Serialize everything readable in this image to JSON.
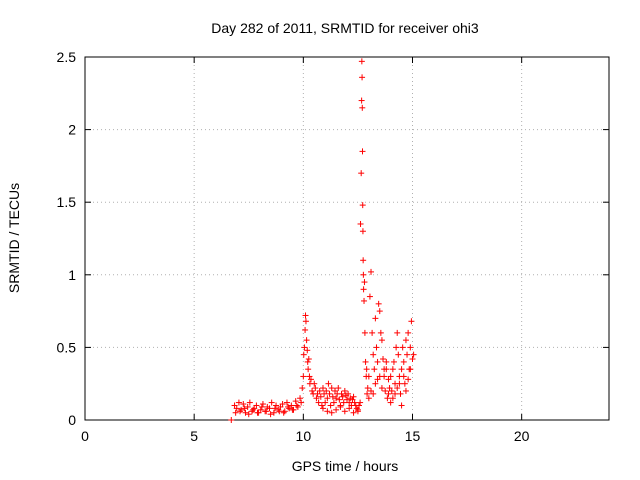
{
  "chart_data": {
    "type": "scatter",
    "title": "Day 282 of 2011, SRMTID for receiver ohi3",
    "xlabel": "GPS time / hours",
    "ylabel": "SRMTID / TECUs",
    "xlim": [
      0,
      24
    ],
    "ylim": [
      0,
      2.5
    ],
    "xticks": [
      0,
      5,
      10,
      15,
      20
    ],
    "xtick_labels": [
      "0",
      "5",
      "10",
      "15",
      "20"
    ],
    "yticks": [
      0,
      0.5,
      1,
      1.5,
      2,
      2.5
    ],
    "ytick_labels": [
      "0",
      "0.5",
      "1",
      "1.5",
      "2",
      "2.5"
    ],
    "grid": true,
    "marker": "+",
    "marker_color": "#ff0000",
    "series": [
      {
        "name": "ohi3",
        "x": [
          6.7,
          6.85,
          6.95,
          7.05,
          7.15,
          7.25,
          7.35,
          7.45,
          7.55,
          7.65,
          7.75,
          7.85,
          7.95,
          8.05,
          8.15,
          8.25,
          8.35,
          8.45,
          8.55,
          8.65,
          8.75,
          8.85,
          8.95,
          9.05,
          9.15,
          9.25,
          9.35,
          9.45,
          9.55,
          9.65,
          9.75,
          9.85,
          6.9,
          7.1,
          7.3,
          7.5,
          7.7,
          7.9,
          8.1,
          8.3,
          8.5,
          8.7,
          8.9,
          9.1,
          9.3,
          9.5,
          9.7,
          9.9,
          9.95,
          10.0,
          10.02,
          10.05,
          10.08,
          10.1,
          10.12,
          10.15,
          10.18,
          10.2,
          10.22,
          10.25,
          10.28,
          10.3,
          10.35,
          10.4,
          10.45,
          10.5,
          10.55,
          10.6,
          10.65,
          10.7,
          10.75,
          10.8,
          10.85,
          10.9,
          10.95,
          11.0,
          11.05,
          11.1,
          11.15,
          11.2,
          11.25,
          11.3,
          11.35,
          11.4,
          11.45,
          11.5,
          11.55,
          11.6,
          11.65,
          11.7,
          11.75,
          11.8,
          11.85,
          11.9,
          11.95,
          12.0,
          12.05,
          12.1,
          12.15,
          12.2,
          12.25,
          12.3,
          12.35,
          12.4,
          12.45,
          12.5,
          12.55,
          12.6,
          10.9,
          11.1,
          11.3,
          11.5,
          11.7,
          11.9,
          12.1,
          12.3,
          12.5,
          12.62,
          12.65,
          12.67,
          12.68,
          12.69,
          12.7,
          12.71,
          12.72,
          12.73,
          12.74,
          12.75,
          12.76,
          12.78,
          12.8,
          12.82,
          12.85,
          12.88,
          12.9,
          12.92,
          12.95,
          13.0,
          13.05,
          13.1,
          13.15,
          13.2,
          13.25,
          13.3,
          13.35,
          13.4,
          13.45,
          13.5,
          13.55,
          13.6,
          13.65,
          13.7,
          13.75,
          13.8,
          13.85,
          13.9,
          13.95,
          13.0,
          13.1,
          13.2,
          13.3,
          13.4,
          13.5,
          13.6,
          13.7,
          13.8,
          13.9,
          14.0,
          14.05,
          14.1,
          14.15,
          14.2,
          14.25,
          14.3,
          14.35,
          14.4,
          14.45,
          14.5,
          14.55,
          14.6,
          14.65,
          14.7,
          14.75,
          14.8,
          14.85,
          14.9,
          14.95,
          15.0,
          15.05,
          14.0,
          14.1,
          14.2,
          14.3,
          14.4,
          14.5,
          14.6,
          14.7,
          14.8,
          14.9
        ],
        "y": [
          0.0,
          0.1,
          0.08,
          0.12,
          0.07,
          0.11,
          0.05,
          0.09,
          0.12,
          0.06,
          0.08,
          0.1,
          0.05,
          0.07,
          0.11,
          0.06,
          0.09,
          0.08,
          0.12,
          0.05,
          0.1,
          0.07,
          0.09,
          0.11,
          0.06,
          0.12,
          0.08,
          0.1,
          0.07,
          0.13,
          0.09,
          0.15,
          0.05,
          0.06,
          0.08,
          0.04,
          0.07,
          0.05,
          0.09,
          0.06,
          0.04,
          0.08,
          0.06,
          0.05,
          0.09,
          0.07,
          0.1,
          0.12,
          0.22,
          0.3,
          0.45,
          0.5,
          0.62,
          0.72,
          0.68,
          0.55,
          0.48,
          0.4,
          0.35,
          0.42,
          0.3,
          0.25,
          0.28,
          0.2,
          0.18,
          0.25,
          0.22,
          0.15,
          0.18,
          0.12,
          0.2,
          0.16,
          0.1,
          0.22,
          0.18,
          0.12,
          0.2,
          0.15,
          0.25,
          0.18,
          0.1,
          0.22,
          0.16,
          0.12,
          0.2,
          0.15,
          0.18,
          0.22,
          0.14,
          0.1,
          0.18,
          0.16,
          0.12,
          0.2,
          0.17,
          0.14,
          0.18,
          0.12,
          0.15,
          0.1,
          0.14,
          0.16,
          0.12,
          0.1,
          0.08,
          0.06,
          0.1,
          0.12,
          0.08,
          0.06,
          0.05,
          0.07,
          0.09,
          0.06,
          0.08,
          0.05,
          0.07,
          1.35,
          1.7,
          2.2,
          2.47,
          2.36,
          2.15,
          1.85,
          1.48,
          1.3,
          1.1,
          1.0,
          0.9,
          0.82,
          0.95,
          0.6,
          0.4,
          0.3,
          0.35,
          0.18,
          0.22,
          0.3,
          0.85,
          1.02,
          0.6,
          0.45,
          0.35,
          0.7,
          0.5,
          0.4,
          0.8,
          0.75,
          0.6,
          0.55,
          0.42,
          0.3,
          0.2,
          0.35,
          0.15,
          0.28,
          0.22,
          0.15,
          0.2,
          0.18,
          0.25,
          0.28,
          0.3,
          0.22,
          0.35,
          0.4,
          0.18,
          0.3,
          0.2,
          0.35,
          0.4,
          0.25,
          0.5,
          0.6,
          0.45,
          0.3,
          0.18,
          0.35,
          0.5,
          0.4,
          0.25,
          0.55,
          0.45,
          0.6,
          0.35,
          0.5,
          0.68,
          0.42,
          0.45,
          0.12,
          0.15,
          0.18,
          0.22,
          0.25,
          0.1,
          0.3,
          0.2,
          0.28,
          0.35
        ]
      }
    ]
  }
}
